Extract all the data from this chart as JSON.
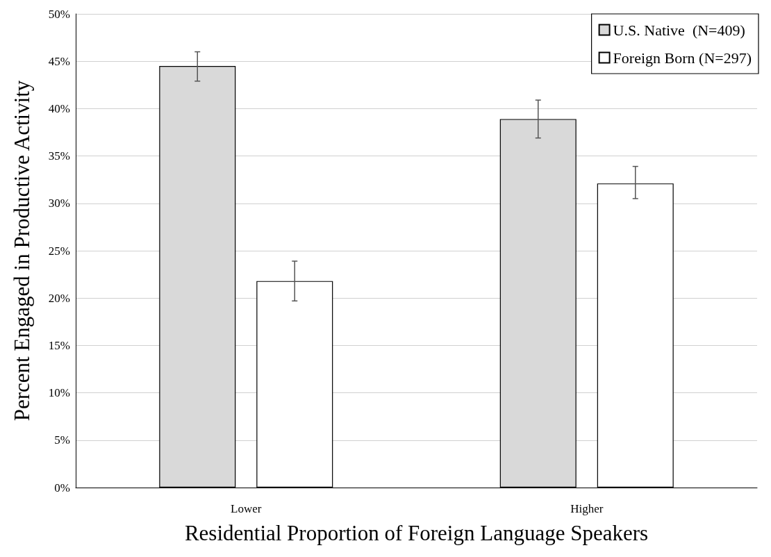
{
  "chart_data": {
    "type": "bar",
    "xlabel": "Residential Proportion of Foreign Language Speakers",
    "ylabel": "Percent Engaged in Productive Activity",
    "categories": [
      "Lower",
      "Higher"
    ],
    "series": [
      {
        "name": "U.S. Native  (N=409)",
        "color": "#d9d9d9",
        "values": [
          44.5,
          38.9
        ],
        "errors": [
          [
            42.9,
            46.0
          ],
          [
            36.9,
            40.9
          ]
        ]
      },
      {
        "name": "Foreign Born (N=297)",
        "color": "#ffffff",
        "values": [
          21.8,
          32.1
        ],
        "errors": [
          [
            19.7,
            23.9
          ],
          [
            30.5,
            33.9
          ]
        ]
      }
    ],
    "ylim": [
      0,
      50
    ],
    "yticks": [
      {
        "value": 0,
        "label": "0%"
      },
      {
        "value": 5,
        "label": "5%"
      },
      {
        "value": 10,
        "label": "10%"
      },
      {
        "value": 15,
        "label": "15%"
      },
      {
        "value": 20,
        "label": "20%"
      },
      {
        "value": 25,
        "label": "25%"
      },
      {
        "value": 30,
        "label": "30%"
      },
      {
        "value": 35,
        "label": "35%"
      },
      {
        "value": 40,
        "label": "40%"
      },
      {
        "value": 45,
        "label": "45%"
      },
      {
        "value": 50,
        "label": "50%"
      }
    ],
    "grid": "y",
    "legend": "top right"
  }
}
